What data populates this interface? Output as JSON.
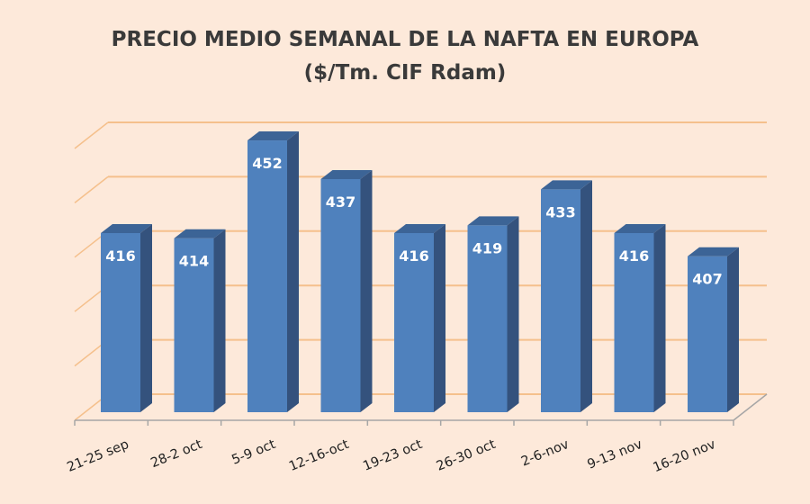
{
  "chart_data": {
    "type": "bar",
    "title": "PRECIO MEDIO SEMANAL DE LA NAFTA EN EUROPA",
    "subtitle": "($/Tm. CIF Rdam)",
    "categories": [
      "21-25 sep",
      "28-2 oct",
      "5-9 oct",
      "12-16-oct",
      "19-23 oct",
      "26-30 oct",
      "2-6-nov",
      "9-13 nov",
      "16-20 nov"
    ],
    "values": [
      416,
      414,
      452,
      437,
      416,
      419,
      433,
      416,
      407
    ],
    "xlabel": "",
    "ylabel": "",
    "ylim": [
      346,
      521
    ],
    "grid": true,
    "legend": "none",
    "style": "3d-column",
    "colors": {
      "front": "#4f81bd",
      "side": "#34527d",
      "top": "#3c6496",
      "grid": "#f5c08c",
      "axis": "#a6a6a6",
      "background": "#fde9da"
    }
  }
}
